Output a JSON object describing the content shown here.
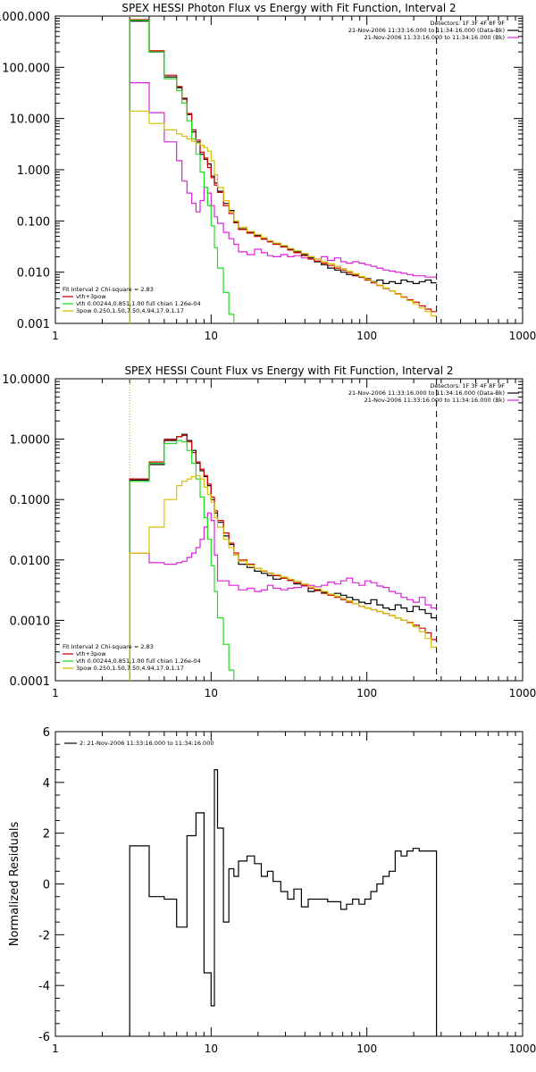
{
  "chart_data": [
    {
      "type": "line",
      "title": "SPEX HESSI Photon Flux vs Energy with Fit Function, Interval 2",
      "xscale": "log",
      "yscale": "log",
      "xlim": [
        1,
        1000
      ],
      "ylim": [
        0.001,
        1000
      ],
      "x_ticks": [
        {
          "v": 1,
          "label": "1"
        },
        {
          "v": 10,
          "label": "10"
        },
        {
          "v": 100,
          "label": "100"
        },
        {
          "v": 1000,
          "label": "1000"
        }
      ],
      "y_ticks": [
        {
          "v": 1000,
          "label": "1000.000"
        },
        {
          "v": 100,
          "label": "100.000"
        },
        {
          "v": 10,
          "label": "10.000"
        },
        {
          "v": 1,
          "label": "1.000"
        },
        {
          "v": 0.1,
          "label": "0.100"
        },
        {
          "v": 0.01,
          "label": "0.010"
        },
        {
          "v": 0.001,
          "label": "0.001"
        }
      ],
      "legend_top_right": [
        "Detectors: 1F 3F 4F 8F 9F",
        "21-Nov-2006 11:33:16.000 to 11:34:16.000 (Data-Bk)",
        "21-Nov-2006 11:33:16.000 to 11:34:16.000 (Bk)"
      ],
      "legend_bottom_left": {
        "header": "Fit Interval 2   Chi-square = 2.83",
        "entries": [
          {
            "label": "vth+3pow",
            "color": "#d40000"
          },
          {
            "label": "vth 0.00244,0.851,1.00  full chian 1.26e-04",
            "color": "#22dd22"
          },
          {
            "label": "3pow 0.250,1.50,7.50,4.94,17.9,1.17",
            "color": "#d4c000"
          }
        ]
      },
      "vlines": [
        {
          "x": 3,
          "color": "#d4a000",
          "style": "dotted"
        },
        {
          "x": 280,
          "color": "#000000",
          "style": "dashed"
        }
      ],
      "edges": [
        3,
        4,
        5,
        6,
        6.5,
        7,
        7.5,
        8,
        8.5,
        9,
        9.5,
        10,
        10.5,
        11,
        12,
        13,
        14,
        15,
        17,
        19,
        21,
        23,
        25,
        28,
        31,
        34,
        38,
        42,
        46,
        51,
        56,
        62,
        68,
        74,
        81,
        89,
        97,
        106,
        116,
        127,
        139,
        152,
        166,
        181,
        198,
        217,
        237,
        259,
        280
      ],
      "series": [
        {
          "name": "Data-Bk",
          "color": "#000000",
          "values": [
            800,
            200,
            65,
            40,
            24,
            12,
            5.5,
            3.5,
            2.0,
            1.6,
            1.3,
            0.75,
            0.55,
            0.38,
            0.22,
            0.16,
            0.095,
            0.07,
            0.06,
            0.052,
            0.045,
            0.04,
            0.036,
            0.032,
            0.028,
            0.025,
            0.022,
            0.019,
            0.016,
            0.014,
            0.012,
            0.011,
            0.01,
            0.009,
            0.0085,
            0.008,
            0.0075,
            0.0065,
            0.007,
            0.006,
            0.0065,
            0.006,
            0.007,
            0.0065,
            0.006,
            0.0065,
            0.007,
            0.0062
          ]
        },
        {
          "name": "Bk",
          "color": "#dd22dd",
          "values": [
            50,
            13,
            3.5,
            1.5,
            0.6,
            0.35,
            0.22,
            0.15,
            0.25,
            0.45,
            0.35,
            0.2,
            0.12,
            0.09,
            0.06,
            0.045,
            0.035,
            0.025,
            0.022,
            0.028,
            0.024,
            0.021,
            0.02,
            0.022,
            0.02,
            0.021,
            0.019,
            0.02,
            0.018,
            0.02,
            0.017,
            0.019,
            0.016,
            0.015,
            0.016,
            0.015,
            0.014,
            0.013,
            0.012,
            0.011,
            0.0105,
            0.01,
            0.0095,
            0.009,
            0.0085,
            0.0085,
            0.008,
            0.008
          ]
        },
        {
          "name": "vth+3pow",
          "color": "#d40000",
          "values": [
            850,
            210,
            70,
            42,
            25,
            12.5,
            6,
            3.8,
            2.2,
            1.7,
            1.1,
            0.7,
            0.5,
            0.36,
            0.2,
            0.14,
            0.092,
            0.068,
            0.058,
            0.05,
            0.044,
            0.039,
            0.035,
            0.031,
            0.027,
            0.024,
            0.021,
            0.018,
            0.0165,
            0.015,
            0.0135,
            0.012,
            0.011,
            0.0098,
            0.0088,
            0.0079,
            0.007,
            0.0062,
            0.0055,
            0.0048,
            0.0043,
            0.0038,
            0.0033,
            0.0029,
            0.0026,
            0.0022,
            0.0019,
            0.0017
          ]
        },
        {
          "name": "vth",
          "color": "#22dd22",
          "values": [
            830,
            200,
            60,
            35,
            20,
            9,
            4,
            2.0,
            0.9,
            0.45,
            0.2,
            0.08,
            0.03,
            0.012,
            0.004,
            0.0015
          ]
        },
        {
          "name": "3pow",
          "color": "#d4c000",
          "values": [
            14,
            8,
            6,
            5,
            4.5,
            4,
            3.6,
            3.3,
            3.0,
            2.7,
            2.3,
            1.5,
            0.8,
            0.45,
            0.25,
            0.15,
            0.1,
            0.075,
            0.062,
            0.054,
            0.047,
            0.041,
            0.037,
            0.033,
            0.029,
            0.026,
            0.023,
            0.02,
            0.018,
            0.016,
            0.0145,
            0.013,
            0.0117,
            0.0104,
            0.0093,
            0.0082,
            0.0073,
            0.0064,
            0.0056,
            0.0049,
            0.0043,
            0.0037,
            0.0032,
            0.0028,
            0.0024,
            0.002,
            0.0017,
            0.0014
          ]
        }
      ]
    },
    {
      "type": "line",
      "title": "SPEX HESSI Count Flux vs Energy with Fit Function, Interval 2",
      "xscale": "log",
      "yscale": "log",
      "xlim": [
        1,
        1000
      ],
      "ylim": [
        0.0001,
        10
      ],
      "x_ticks": [
        {
          "v": 1,
          "label": "1"
        },
        {
          "v": 10,
          "label": "10"
        },
        {
          "v": 100,
          "label": "100"
        },
        {
          "v": 1000,
          "label": "1000"
        }
      ],
      "y_ticks": [
        {
          "v": 10,
          "label": "10.0000"
        },
        {
          "v": 1,
          "label": "1.0000"
        },
        {
          "v": 0.1,
          "label": "0.1000"
        },
        {
          "v": 0.01,
          "label": "0.0100"
        },
        {
          "v": 0.001,
          "label": "0.0010"
        },
        {
          "v": 0.0001,
          "label": "0.0001"
        }
      ],
      "legend_top_right": [
        "Detectors: 1F 3F 4F 8F 9F",
        "21-Nov-2006 11:33:16.000 to 11:34:16.000 (Data-Bk)",
        "21-Nov-2006 11:33:16.000 to 11:34:16.000 (Bk)"
      ],
      "legend_bottom_left": {
        "header": "Fit Interval 2   Chi-square = 2.83",
        "entries": [
          {
            "label": "vth+3pow",
            "color": "#d40000"
          },
          {
            "label": "vth 0.00244,0.851,1.00  full chian 1.26e-04",
            "color": "#22dd22"
          },
          {
            "label": "3pow 0.250,1.50,7.50,4.94,17.9,1.17",
            "color": "#d4c000"
          }
        ]
      },
      "vlines": [
        {
          "x": 3,
          "color": "#d4a000",
          "style": "dotted"
        },
        {
          "x": 280,
          "color": "#000000",
          "style": "dashed"
        }
      ],
      "edges": [
        3,
        4,
        5,
        6,
        6.5,
        7,
        7.5,
        8,
        8.5,
        9,
        9.5,
        10,
        10.5,
        11,
        12,
        13,
        14,
        15,
        17,
        19,
        21,
        23,
        25,
        28,
        31,
        34,
        38,
        42,
        46,
        51,
        56,
        62,
        68,
        74,
        81,
        89,
        97,
        106,
        116,
        127,
        139,
        152,
        166,
        181,
        198,
        217,
        237,
        259,
        280
      ],
      "series": [
        {
          "name": "Data-Bk",
          "color": "#000000",
          "values": [
            0.21,
            0.38,
            0.95,
            1.1,
            1.2,
            0.95,
            0.65,
            0.4,
            0.3,
            0.24,
            0.17,
            0.1,
            0.06,
            0.042,
            0.025,
            0.018,
            0.012,
            0.0085,
            0.0075,
            0.0065,
            0.006,
            0.0055,
            0.0048,
            0.005,
            0.0046,
            0.004,
            0.0038,
            0.003,
            0.0032,
            0.0029,
            0.0027,
            0.0028,
            0.0026,
            0.0024,
            0.0022,
            0.002,
            0.0019,
            0.0022,
            0.0018,
            0.0016,
            0.0015,
            0.0018,
            0.0016,
            0.0014,
            0.0017,
            0.0015,
            0.0013,
            0.0011
          ]
        },
        {
          "name": "Bk",
          "color": "#dd22dd",
          "values": [
            0.013,
            0.009,
            0.0085,
            0.009,
            0.0095,
            0.011,
            0.013,
            0.016,
            0.022,
            0.035,
            0.06,
            0.045,
            0.012,
            0.0045,
            0.0045,
            0.0038,
            0.0038,
            0.0032,
            0.0034,
            0.003,
            0.0032,
            0.0038,
            0.0034,
            0.0032,
            0.0034,
            0.0035,
            0.0037,
            0.0038,
            0.0036,
            0.0038,
            0.0043,
            0.004,
            0.0045,
            0.005,
            0.0042,
            0.0038,
            0.0045,
            0.0042,
            0.0037,
            0.0035,
            0.003,
            0.0028,
            0.0024,
            0.0022,
            0.002,
            0.0024,
            0.0018,
            0.0016
          ]
        },
        {
          "name": "vth+3pow",
          "color": "#d40000",
          "values": [
            0.22,
            0.42,
            1.0,
            1.1,
            1.15,
            0.9,
            0.6,
            0.42,
            0.32,
            0.25,
            0.18,
            0.11,
            0.065,
            0.045,
            0.028,
            0.019,
            0.013,
            0.01,
            0.0085,
            0.0072,
            0.0065,
            0.006,
            0.0055,
            0.005,
            0.0046,
            0.0042,
            0.0038,
            0.0034,
            0.0031,
            0.0028,
            0.0026,
            0.0024,
            0.0022,
            0.002,
            0.0019,
            0.0017,
            0.0016,
            0.0015,
            0.0014,
            0.0013,
            0.0012,
            0.0011,
            0.001,
            0.00092,
            0.00083,
            0.00074,
            0.00062,
            0.00048
          ]
        },
        {
          "name": "vth",
          "color": "#22dd22",
          "values": [
            0.2,
            0.4,
            0.85,
            0.95,
            0.9,
            0.65,
            0.4,
            0.22,
            0.11,
            0.05,
            0.022,
            0.008,
            0.003,
            0.0011,
            0.0004,
            0.00015
          ]
        },
        {
          "name": "3pow",
          "color": "#d4c000",
          "values": [
            0.013,
            0.035,
            0.1,
            0.17,
            0.2,
            0.22,
            0.24,
            0.25,
            0.22,
            0.16,
            0.12,
            0.09,
            0.05,
            0.035,
            0.022,
            0.016,
            0.012,
            0.0095,
            0.0082,
            0.0072,
            0.0066,
            0.0061,
            0.0057,
            0.0052,
            0.0048,
            0.0044,
            0.004,
            0.0036,
            0.0033,
            0.003,
            0.0027,
            0.0025,
            0.0023,
            0.0021,
            0.0019,
            0.0017,
            0.0016,
            0.0015,
            0.0014,
            0.0013,
            0.0012,
            0.0011,
            0.001,
            0.0009,
            0.00078,
            0.00065,
            0.0005,
            0.00036
          ]
        }
      ]
    },
    {
      "type": "line",
      "title": "",
      "xscale": "log",
      "yscale": "linear",
      "xlim": [
        1,
        1000
      ],
      "ylim": [
        -6,
        6
      ],
      "ylabel": "Normalized Residuals",
      "x_ticks": [
        {
          "v": 1,
          "label": "1"
        },
        {
          "v": 10,
          "label": "10"
        },
        {
          "v": 100,
          "label": "100"
        },
        {
          "v": 1000,
          "label": "1000"
        }
      ],
      "y_ticks": [
        {
          "v": 6,
          "label": "6"
        },
        {
          "v": 4,
          "label": "4"
        },
        {
          "v": 2,
          "label": "2"
        },
        {
          "v": 0,
          "label": "0"
        },
        {
          "v": -2,
          "label": "-2"
        },
        {
          "v": -4,
          "label": "-4"
        },
        {
          "v": -6,
          "label": "-6"
        }
      ],
      "legend_top_left": "2: 21-Nov-2006 11:33:16.000 to 11:34:16.000",
      "edges": [
        3,
        4,
        5,
        6,
        6.5,
        7,
        7.5,
        8,
        8.5,
        9,
        9.5,
        10,
        10.5,
        11,
        12,
        13,
        14,
        15,
        17,
        19,
        21,
        23,
        25,
        28,
        31,
        34,
        38,
        42,
        46,
        51,
        56,
        62,
        68,
        74,
        81,
        89,
        97,
        106,
        116,
        127,
        139,
        152,
        166,
        181,
        198,
        217,
        237,
        259,
        280
      ],
      "series": [
        {
          "name": "2: 21-Nov-2006 11:33:16.000 to 11:34:16.000",
          "color": "#000000",
          "values": [
            1.5,
            -0.5,
            -0.6,
            -1.7,
            -1.7,
            1.9,
            1.9,
            2.8,
            2.8,
            -3.5,
            -3.5,
            -4.8,
            4.5,
            2.2,
            -1.5,
            0.6,
            0.3,
            0.9,
            1.1,
            0.8,
            0.3,
            0.5,
            0.1,
            -0.3,
            -0.6,
            -0.2,
            -0.9,
            -0.6,
            -0.6,
            -0.6,
            -0.7,
            -0.7,
            -1.0,
            -0.8,
            -0.6,
            -0.8,
            -0.6,
            -0.3,
            0.0,
            0.3,
            0.5,
            1.3,
            1.1,
            1.3,
            1.4,
            1.3,
            1.3,
            1.3
          ]
        }
      ],
      "drop_to_bottom": [
        3,
        280
      ]
    }
  ]
}
